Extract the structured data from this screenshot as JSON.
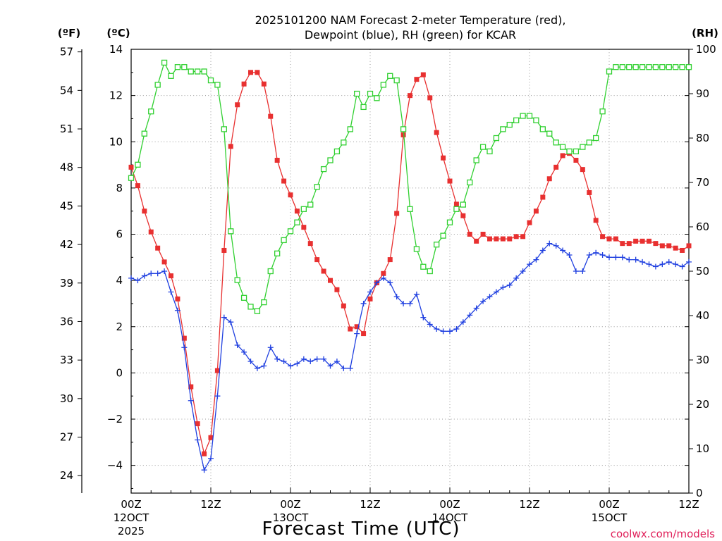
{
  "chart_data": {
    "type": "line",
    "title": [
      "2025101200 NAM Forecast 2-meter Temperature (red),",
      "Dewpoint (blue), RH (green) for KCAR"
    ],
    "xlabel": "Forecast Time (UTC)",
    "units": {
      "fahrenheit": "(ºF)",
      "celsius": "(ºC)",
      "rh": "(RH)"
    },
    "credit": "coolwx.com/models",
    "x_range": [
      0,
      84
    ],
    "x_ticks": [
      {
        "x": 0,
        "label": "00Z",
        "date": "12OCT",
        "year": "2025"
      },
      {
        "x": 12,
        "label": "12Z"
      },
      {
        "x": 24,
        "label": "00Z",
        "date": "13OCT"
      },
      {
        "x": 36,
        "label": "12Z"
      },
      {
        "x": 48,
        "label": "00Z",
        "date": "14OCT"
      },
      {
        "x": 60,
        "label": "12Z"
      },
      {
        "x": 72,
        "label": "00Z",
        "date": "15OCT"
      },
      {
        "x": 84,
        "label": "12Z"
      }
    ],
    "ylim_celsius": [
      -5.2,
      14
    ],
    "ylim_rh": [
      0,
      100
    ],
    "y_ticks_celsius": [
      -4,
      -2,
      0,
      2,
      4,
      6,
      8,
      10,
      12,
      14
    ],
    "y_ticks_fahrenheit": [
      24,
      27,
      30,
      33,
      36,
      39,
      42,
      45,
      48,
      51,
      54,
      57
    ],
    "y_ticks_rh": [
      0,
      10,
      20,
      30,
      40,
      50,
      60,
      70,
      80,
      90,
      100
    ],
    "grid": true,
    "series": [
      {
        "name": "Temperature",
        "color": "#e83030",
        "marker": "filled-square",
        "axis": "celsius",
        "x": [
          0,
          1,
          2,
          3,
          4,
          5,
          6,
          7,
          8,
          9,
          10,
          11,
          12,
          13,
          14,
          15,
          16,
          17,
          18,
          19,
          20,
          21,
          22,
          23,
          24,
          25,
          26,
          27,
          28,
          29,
          30,
          31,
          32,
          33,
          34,
          35,
          36,
          37,
          38,
          39,
          40,
          41,
          42,
          43,
          44,
          45,
          46,
          47,
          48,
          49,
          50,
          51,
          52,
          53,
          54,
          55,
          56,
          57,
          58,
          59,
          60,
          61,
          62,
          63,
          64,
          65,
          66,
          67,
          68,
          69,
          70,
          71,
          72,
          73,
          74,
          75,
          76,
          77,
          78,
          79,
          80,
          81,
          82,
          83,
          84
        ],
        "values": [
          8.9,
          8.1,
          7.0,
          6.1,
          5.4,
          4.8,
          4.2,
          3.2,
          1.5,
          -0.6,
          -2.2,
          -3.5,
          -2.8,
          0.1,
          5.3,
          9.8,
          11.6,
          12.5,
          13.0,
          13.0,
          12.5,
          11.1,
          9.2,
          8.3,
          7.7,
          7.0,
          6.3,
          5.6,
          4.9,
          4.4,
          4.0,
          3.6,
          2.9,
          1.9,
          2.0,
          1.7,
          3.2,
          3.9,
          4.3,
          4.9,
          6.9,
          10.3,
          12.0,
          12.7,
          12.9,
          11.9,
          10.4,
          9.3,
          8.3,
          7.3,
          6.8,
          6.0,
          5.7,
          6.0,
          5.8,
          5.8,
          5.8,
          5.8,
          5.9,
          5.9,
          6.5,
          7.0,
          7.6,
          8.4,
          8.9,
          9.4,
          9.5,
          9.2,
          8.8,
          7.8,
          6.6,
          5.9,
          5.8,
          5.8,
          5.6,
          5.6,
          5.7,
          5.7,
          5.7,
          5.6,
          5.5,
          5.5,
          5.4,
          5.3,
          5.5
        ]
      },
      {
        "name": "Dewpoint",
        "color": "#2040e0",
        "marker": "plus",
        "axis": "celsius",
        "x": [
          0,
          1,
          2,
          3,
          4,
          5,
          6,
          7,
          8,
          9,
          10,
          11,
          12,
          13,
          14,
          15,
          16,
          17,
          18,
          19,
          20,
          21,
          22,
          23,
          24,
          25,
          26,
          27,
          28,
          29,
          30,
          31,
          32,
          33,
          34,
          35,
          36,
          37,
          38,
          39,
          40,
          41,
          42,
          43,
          44,
          45,
          46,
          47,
          48,
          49,
          50,
          51,
          52,
          53,
          54,
          55,
          56,
          57,
          58,
          59,
          60,
          61,
          62,
          63,
          64,
          65,
          66,
          67,
          68,
          69,
          70,
          71,
          72,
          73,
          74,
          75,
          76,
          77,
          78,
          79,
          80,
          81,
          82,
          83,
          84
        ],
        "values": [
          4.1,
          4.0,
          4.2,
          4.3,
          4.3,
          4.4,
          3.5,
          2.7,
          1.1,
          -1.2,
          -2.9,
          -4.2,
          -3.7,
          -1.0,
          2.4,
          2.2,
          1.2,
          0.9,
          0.5,
          0.2,
          0.3,
          1.1,
          0.6,
          0.5,
          0.3,
          0.4,
          0.6,
          0.5,
          0.6,
          0.6,
          0.3,
          0.5,
          0.2,
          0.2,
          1.7,
          3.0,
          3.5,
          3.9,
          4.1,
          3.9,
          3.3,
          3.0,
          3.0,
          3.4,
          2.4,
          2.1,
          1.9,
          1.8,
          1.8,
          1.9,
          2.2,
          2.5,
          2.8,
          3.1,
          3.3,
          3.5,
          3.7,
          3.8,
          4.1,
          4.4,
          4.7,
          4.9,
          5.3,
          5.6,
          5.5,
          5.3,
          5.1,
          4.4,
          4.4,
          5.1,
          5.2,
          5.1,
          5.0,
          5.0,
          5.0,
          4.9,
          4.9,
          4.8,
          4.7,
          4.6,
          4.7,
          4.8,
          4.7,
          4.6,
          4.8
        ]
      },
      {
        "name": "RH",
        "color": "#30d030",
        "marker": "open-square",
        "axis": "rh",
        "x": [
          0,
          1,
          2,
          3,
          4,
          5,
          6,
          7,
          8,
          9,
          10,
          11,
          12,
          13,
          14,
          15,
          16,
          17,
          18,
          19,
          20,
          21,
          22,
          23,
          24,
          25,
          26,
          27,
          28,
          29,
          30,
          31,
          32,
          33,
          34,
          35,
          36,
          37,
          38,
          39,
          40,
          41,
          42,
          43,
          44,
          45,
          46,
          47,
          48,
          49,
          50,
          51,
          52,
          53,
          54,
          55,
          56,
          57,
          58,
          59,
          60,
          61,
          62,
          63,
          64,
          65,
          66,
          67,
          68,
          69,
          70,
          71,
          72,
          73,
          74,
          75,
          76,
          77,
          78,
          79,
          80,
          81,
          82,
          83,
          84
        ],
        "values": [
          71,
          74,
          81,
          86,
          92,
          97,
          94,
          96,
          96,
          95,
          95,
          95,
          93,
          92,
          82,
          59,
          48,
          44,
          42,
          41,
          43,
          50,
          54,
          57,
          59,
          61,
          64,
          65,
          69,
          73,
          75,
          77,
          79,
          82,
          90,
          87,
          90,
          89,
          92,
          94,
          93,
          82,
          64,
          55,
          51,
          50,
          56,
          58,
          61,
          64,
          65,
          70,
          75,
          78,
          77,
          80,
          82,
          83,
          84,
          85,
          85,
          84,
          82,
          81,
          79,
          78,
          77,
          77,
          78,
          79,
          80,
          86,
          95,
          96,
          96,
          96,
          96,
          96,
          96,
          96,
          96,
          96,
          96,
          96,
          96
        ]
      }
    ]
  }
}
